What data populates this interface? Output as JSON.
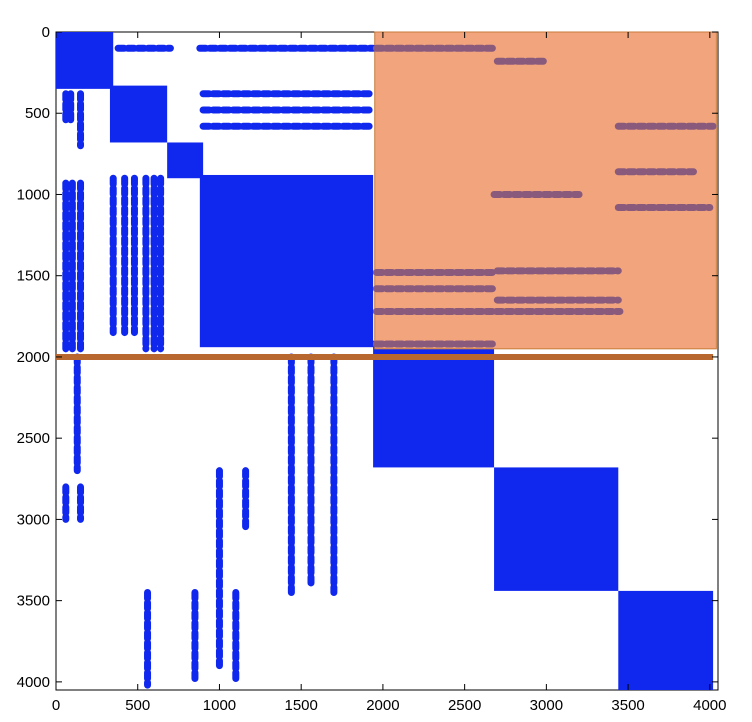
{
  "chart_data": {
    "type": "scatter",
    "title": "",
    "xlabel": "",
    "ylabel": "",
    "xlim": [
      0,
      4050
    ],
    "ylim": [
      0,
      4050
    ],
    "y_inverted": true,
    "grid": false,
    "x_ticks": [
      "0",
      "500",
      "1000",
      "1500",
      "2000",
      "2500",
      "3000",
      "3500",
      "4000"
    ],
    "y_ticks": [
      "0",
      "500",
      "1000",
      "1500",
      "2000",
      "2500",
      "3000",
      "3500",
      "4000"
    ],
    "colors": {
      "points": "#1028ee",
      "overlay_points": "#8a5a7c",
      "highlight_box": "#f2a57c",
      "highlight_border": "#c87a3a",
      "divider": "#b8682e"
    },
    "dense_blocks": [
      {
        "x": [
          0,
          350
        ],
        "y": [
          0,
          350
        ]
      },
      {
        "x": [
          330,
          680
        ],
        "y": [
          330,
          680
        ]
      },
      {
        "x": [
          680,
          900
        ],
        "y": [
          680,
          900
        ]
      },
      {
        "x": [
          880,
          1940
        ],
        "y": [
          880,
          1940
        ]
      },
      {
        "x": [
          1940,
          2680
        ],
        "y": [
          1900,
          2680
        ]
      },
      {
        "x": [
          2680,
          3440
        ],
        "y": [
          2680,
          3440
        ]
      },
      {
        "x": [
          3440,
          4020
        ],
        "y": [
          3440,
          4050
        ]
      }
    ],
    "scatter_columns": [
      {
        "x": 60,
        "y": [
          380,
          560
        ]
      },
      {
        "x": 90,
        "y": [
          380,
          560
        ]
      },
      {
        "x": 150,
        "y": [
          380,
          700
        ]
      },
      {
        "x": 60,
        "y": [
          930,
          1950
        ]
      },
      {
        "x": 100,
        "y": [
          930,
          1950
        ]
      },
      {
        "x": 150,
        "y": [
          930,
          1950
        ]
      },
      {
        "x": 130,
        "y": [
          2000,
          2700
        ]
      },
      {
        "x": 60,
        "y": [
          2800,
          3000
        ]
      },
      {
        "x": 150,
        "y": [
          2800,
          3000
        ]
      },
      {
        "x": 350,
        "y": [
          900,
          1850
        ]
      },
      {
        "x": 420,
        "y": [
          900,
          1850
        ]
      },
      {
        "x": 480,
        "y": [
          900,
          1850
        ]
      },
      {
        "x": 550,
        "y": [
          900,
          1950
        ]
      },
      {
        "x": 600,
        "y": [
          900,
          1950
        ]
      },
      {
        "x": 640,
        "y": [
          900,
          1950
        ]
      },
      {
        "x": 560,
        "y": [
          3450,
          4020
        ]
      },
      {
        "x": 850,
        "y": [
          3450,
          4000
        ]
      },
      {
        "x": 1000,
        "y": [
          2700,
          3900
        ]
      },
      {
        "x": 1100,
        "y": [
          3450,
          4000
        ]
      },
      {
        "x": 1160,
        "y": [
          2700,
          3050
        ]
      },
      {
        "x": 1440,
        "y": [
          2000,
          3450
        ]
      },
      {
        "x": 1560,
        "y": [
          2000,
          3400
        ]
      },
      {
        "x": 1700,
        "y": [
          2000,
          3450
        ]
      }
    ],
    "scatter_rows": [
      {
        "y": 100,
        "x": [
          380,
          700
        ]
      },
      {
        "y": 100,
        "x": [
          880,
          1940
        ]
      },
      {
        "y": 380,
        "x": [
          900,
          1940
        ]
      },
      {
        "y": 480,
        "x": [
          900,
          1940
        ]
      },
      {
        "y": 580,
        "x": [
          900,
          1940
        ]
      },
      {
        "y": 100,
        "x": [
          1960,
          2680
        ]
      },
      {
        "y": 180,
        "x": [
          2700,
          3000
        ]
      },
      {
        "y": 1480,
        "x": [
          1960,
          2680
        ]
      },
      {
        "y": 1580,
        "x": [
          1960,
          2680
        ]
      },
      {
        "y": 1720,
        "x": [
          1960,
          3450
        ]
      },
      {
        "y": 1920,
        "x": [
          1960,
          2680
        ]
      },
      {
        "y": 1000,
        "x": [
          2680,
          3200
        ]
      },
      {
        "y": 860,
        "x": [
          3440,
          3900
        ]
      },
      {
        "y": 1080,
        "x": [
          3440,
          4000
        ]
      },
      {
        "y": 580,
        "x": [
          3440,
          4020
        ]
      },
      {
        "y": 1470,
        "x": [
          2700,
          3440
        ]
      },
      {
        "y": 1650,
        "x": [
          2700,
          3440
        ]
      }
    ],
    "highlight_region": {
      "x": [
        1950,
        4040
      ],
      "y": [
        0,
        1950
      ]
    },
    "divider_line": {
      "y": 2000,
      "x": [
        0,
        4020
      ]
    }
  }
}
